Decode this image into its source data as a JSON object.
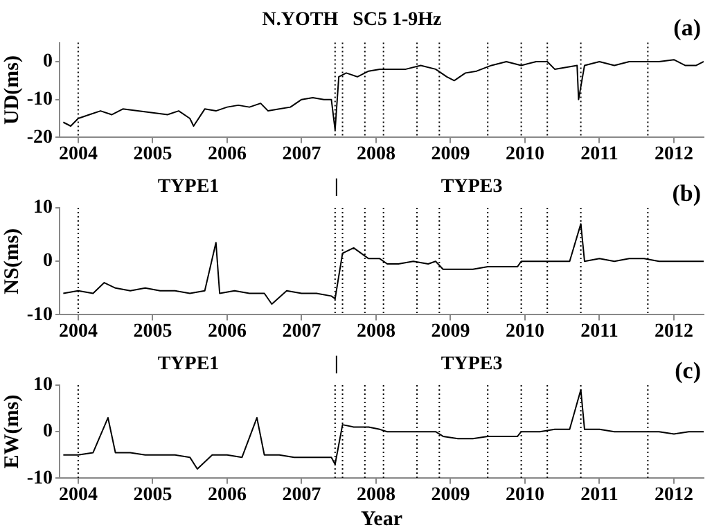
{
  "chart_data": [
    {
      "type": "line",
      "title": "N.YOTH   SC5 1-9Hz",
      "ylabel": "UD(ms)",
      "annotations": [
        "(a)"
      ],
      "marker": "none",
      "line_style": "solid",
      "grid": false,
      "xlim": [
        2003.75,
        2012.4
      ],
      "xticks": [
        2004,
        2005,
        2006,
        2007,
        2008,
        2009,
        2010,
        2011,
        2012
      ],
      "ylim": [
        -20,
        5
      ],
      "yticks": [
        -20,
        -10,
        0
      ],
      "ref_lines": [
        {
          "axis": "x",
          "value": 2004.0,
          "line_style": "dotted",
          "color": "#000000"
        },
        {
          "axis": "x",
          "value": 2007.45,
          "line_style": "dotted",
          "color": "#000000"
        },
        {
          "axis": "x",
          "value": 2007.55,
          "line_style": "dotted",
          "color": "#000000"
        },
        {
          "axis": "x",
          "value": 2007.85,
          "line_style": "dotted",
          "color": "#000000"
        },
        {
          "axis": "x",
          "value": 2008.1,
          "line_style": "dotted",
          "color": "#000000"
        },
        {
          "axis": "x",
          "value": 2008.55,
          "line_style": "dotted",
          "color": "#000000"
        },
        {
          "axis": "x",
          "value": 2008.85,
          "line_style": "dotted",
          "color": "#000000"
        },
        {
          "axis": "x",
          "value": 2009.5,
          "line_style": "dotted",
          "color": "#000000"
        },
        {
          "axis": "x",
          "value": 2009.95,
          "line_style": "dotted",
          "color": "#000000"
        },
        {
          "axis": "x",
          "value": 2010.3,
          "line_style": "dotted",
          "color": "#000000"
        },
        {
          "axis": "x",
          "value": 2010.75,
          "line_style": "dotted",
          "color": "#000000"
        },
        {
          "axis": "x",
          "value": 2011.65,
          "line_style": "dotted",
          "color": "#000000"
        }
      ],
      "series": [
        {
          "color": "#000000",
          "x": [
            2003.8,
            2003.9,
            2004.0,
            2004.15,
            2004.3,
            2004.45,
            2004.6,
            2004.8,
            2005.0,
            2005.2,
            2005.35,
            2005.5,
            2005.55,
            2005.7,
            2005.85,
            2006.0,
            2006.15,
            2006.3,
            2006.45,
            2006.55,
            2006.7,
            2006.85,
            2007.0,
            2007.15,
            2007.3,
            2007.4,
            2007.45,
            2007.5,
            2007.6,
            2007.75,
            2007.9,
            2008.05,
            2008.2,
            2008.4,
            2008.6,
            2008.8,
            2008.95,
            2009.05,
            2009.2,
            2009.35,
            2009.55,
            2009.75,
            2009.95,
            2010.15,
            2010.3,
            2010.4,
            2010.55,
            2010.7,
            2010.72,
            2010.8,
            2011.0,
            2011.2,
            2011.4,
            2011.6,
            2011.8,
            2012.0,
            2012.15,
            2012.3,
            2012.4
          ],
          "values": [
            -16,
            -17,
            -15,
            -14,
            -13,
            -14,
            -12.5,
            -13,
            -13.5,
            -14,
            -13,
            -15,
            -17,
            -12.5,
            -13,
            -12,
            -11.5,
            -12,
            -11,
            -13,
            -12.5,
            -12,
            -10,
            -9.5,
            -10,
            -10,
            -18,
            -4,
            -3,
            -4,
            -2.5,
            -2,
            -2,
            -2,
            -1,
            -2,
            -4,
            -5,
            -3,
            -2.5,
            -1,
            0,
            -1,
            0,
            0,
            -2,
            -1.5,
            -1,
            -10,
            -1,
            0,
            -1,
            0,
            0,
            0,
            0.5,
            -1,
            -1,
            0
          ]
        }
      ]
    },
    {
      "type": "line",
      "ylabel": "NS(ms)",
      "annotations": [
        "TYPE1",
        "|",
        "TYPE3",
        "(b)"
      ],
      "marker": "none",
      "line_style": "solid",
      "grid": false,
      "xlim": [
        2003.75,
        2012.4
      ],
      "xticks": [
        2004,
        2005,
        2006,
        2007,
        2008,
        2009,
        2010,
        2011,
        2012
      ],
      "ylim": [
        -10,
        10
      ],
      "yticks": [
        -10,
        0,
        10
      ],
      "ref_lines": [
        {
          "axis": "x",
          "value": 2004.0,
          "line_style": "dotted",
          "color": "#000000"
        },
        {
          "axis": "x",
          "value": 2007.45,
          "line_style": "dotted",
          "color": "#000000"
        },
        {
          "axis": "x",
          "value": 2007.55,
          "line_style": "dotted",
          "color": "#000000"
        },
        {
          "axis": "x",
          "value": 2007.85,
          "line_style": "dotted",
          "color": "#000000"
        },
        {
          "axis": "x",
          "value": 2008.1,
          "line_style": "dotted",
          "color": "#000000"
        },
        {
          "axis": "x",
          "value": 2008.55,
          "line_style": "dotted",
          "color": "#000000"
        },
        {
          "axis": "x",
          "value": 2008.85,
          "line_style": "dotted",
          "color": "#000000"
        },
        {
          "axis": "x",
          "value": 2009.5,
          "line_style": "dotted",
          "color": "#000000"
        },
        {
          "axis": "x",
          "value": 2009.95,
          "line_style": "dotted",
          "color": "#000000"
        },
        {
          "axis": "x",
          "value": 2010.3,
          "line_style": "dotted",
          "color": "#000000"
        },
        {
          "axis": "x",
          "value": 2010.75,
          "line_style": "dotted",
          "color": "#000000"
        },
        {
          "axis": "x",
          "value": 2011.65,
          "line_style": "dotted",
          "color": "#000000"
        }
      ],
      "series": [
        {
          "color": "#000000",
          "x": [
            2003.8,
            2004.0,
            2004.2,
            2004.35,
            2004.5,
            2004.7,
            2004.9,
            2005.1,
            2005.3,
            2005.5,
            2005.7,
            2005.85,
            2005.9,
            2006.1,
            2006.3,
            2006.5,
            2006.6,
            2006.8,
            2007.0,
            2007.2,
            2007.4,
            2007.45,
            2007.55,
            2007.7,
            2007.9,
            2008.05,
            2008.15,
            2008.3,
            2008.5,
            2008.7,
            2008.8,
            2008.9,
            2009.1,
            2009.3,
            2009.5,
            2009.7,
            2009.9,
            2009.95,
            2010.2,
            2010.4,
            2010.6,
            2010.75,
            2010.8,
            2011.0,
            2011.2,
            2011.4,
            2011.6,
            2011.8,
            2012.0,
            2012.2,
            2012.4
          ],
          "values": [
            -6,
            -5.5,
            -6,
            -4,
            -5,
            -5.5,
            -5,
            -5.5,
            -5.5,
            -6,
            -5.5,
            3.5,
            -6,
            -5.5,
            -6,
            -6,
            -8,
            -5.5,
            -6,
            -6,
            -6.5,
            -7,
            1.5,
            2.5,
            0.5,
            0.5,
            -0.5,
            -0.5,
            0,
            -0.5,
            0,
            -1.5,
            -1.5,
            -1.5,
            -1,
            -1,
            -1,
            0,
            0,
            0,
            0,
            7,
            0,
            0.5,
            0,
            0.5,
            0.5,
            0,
            0,
            0,
            0
          ]
        }
      ]
    },
    {
      "type": "line",
      "ylabel": "EW(ms)",
      "xlabel": "Year",
      "annotations": [
        "TYPE1",
        "|",
        "TYPE3",
        "(c)"
      ],
      "marker": "none",
      "line_style": "solid",
      "grid": false,
      "xlim": [
        2003.75,
        2012.4
      ],
      "xticks": [
        2004,
        2005,
        2006,
        2007,
        2008,
        2009,
        2010,
        2011,
        2012
      ],
      "ylim": [
        -10,
        10
      ],
      "yticks": [
        -10,
        0,
        10
      ],
      "ref_lines": [
        {
          "axis": "x",
          "value": 2004.0,
          "line_style": "dotted",
          "color": "#000000"
        },
        {
          "axis": "x",
          "value": 2007.45,
          "line_style": "dotted",
          "color": "#000000"
        },
        {
          "axis": "x",
          "value": 2007.55,
          "line_style": "dotted",
          "color": "#000000"
        },
        {
          "axis": "x",
          "value": 2007.85,
          "line_style": "dotted",
          "color": "#000000"
        },
        {
          "axis": "x",
          "value": 2008.1,
          "line_style": "dotted",
          "color": "#000000"
        },
        {
          "axis": "x",
          "value": 2008.55,
          "line_style": "dotted",
          "color": "#000000"
        },
        {
          "axis": "x",
          "value": 2008.85,
          "line_style": "dotted",
          "color": "#000000"
        },
        {
          "axis": "x",
          "value": 2009.5,
          "line_style": "dotted",
          "color": "#000000"
        },
        {
          "axis": "x",
          "value": 2009.95,
          "line_style": "dotted",
          "color": "#000000"
        },
        {
          "axis": "x",
          "value": 2010.3,
          "line_style": "dotted",
          "color": "#000000"
        },
        {
          "axis": "x",
          "value": 2010.75,
          "line_style": "dotted",
          "color": "#000000"
        },
        {
          "axis": "x",
          "value": 2011.65,
          "line_style": "dotted",
          "color": "#000000"
        }
      ],
      "series": [
        {
          "color": "#000000",
          "x": [
            2003.8,
            2004.0,
            2004.2,
            2004.4,
            2004.5,
            2004.7,
            2004.9,
            2005.1,
            2005.3,
            2005.5,
            2005.6,
            2005.8,
            2006.0,
            2006.2,
            2006.4,
            2006.5,
            2006.7,
            2006.9,
            2007.1,
            2007.3,
            2007.4,
            2007.45,
            2007.55,
            2007.7,
            2007.9,
            2008.05,
            2008.15,
            2008.4,
            2008.6,
            2008.8,
            2008.9,
            2009.1,
            2009.3,
            2009.5,
            2009.7,
            2009.9,
            2009.95,
            2010.2,
            2010.4,
            2010.6,
            2010.75,
            2010.8,
            2011.0,
            2011.2,
            2011.4,
            2011.6,
            2011.8,
            2012.0,
            2012.2,
            2012.4
          ],
          "values": [
            -5,
            -5,
            -4.5,
            3,
            -4.5,
            -4.5,
            -5,
            -5,
            -5,
            -5.5,
            -8,
            -5,
            -5,
            -5.5,
            3,
            -5,
            -5,
            -5.5,
            -5.5,
            -5.5,
            -5.5,
            -7,
            1.5,
            1,
            1,
            0.5,
            0,
            0,
            0,
            0,
            -1,
            -1.5,
            -1.5,
            -1,
            -1,
            -1,
            0,
            0,
            0.5,
            0.5,
            9,
            0.5,
            0.5,
            0,
            0,
            0,
            0,
            -0.5,
            0,
            0
          ]
        }
      ]
    }
  ]
}
